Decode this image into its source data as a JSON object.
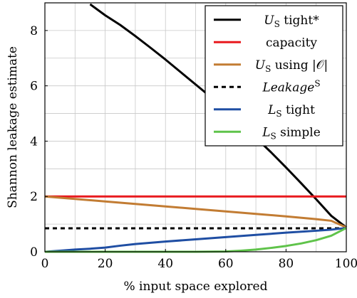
{
  "chart_data": {
    "type": "line",
    "xlabel": "% input space explored",
    "ylabel": "Shannon leakage estimate",
    "xlim": [
      0,
      100
    ],
    "ylim": [
      0,
      9
    ],
    "xticks": [
      0,
      20,
      40,
      60,
      80,
      100
    ],
    "yticks": [
      0,
      2,
      4,
      6,
      8
    ],
    "grid": true,
    "legend_position": "top-right",
    "series": [
      {
        "key": "us_tight",
        "label_main": "U",
        "label_sub": "S",
        "label_rest": " tight*",
        "italic_main": true,
        "color": "#000000",
        "dash": "solid",
        "x": [
          15,
          20,
          25,
          30,
          35,
          40,
          45,
          50,
          55,
          60,
          65,
          70,
          75,
          80,
          85,
          90,
          95,
          100
        ],
        "y": [
          8.95,
          8.55,
          8.2,
          7.8,
          7.38,
          6.95,
          6.5,
          6.05,
          5.6,
          5.12,
          4.63,
          4.12,
          3.6,
          3.05,
          2.48,
          1.9,
          1.3,
          0.88
        ]
      },
      {
        "key": "capacity",
        "label_main": "capacity",
        "label_sub": "",
        "label_rest": "",
        "italic_main": false,
        "color": "#e8191e",
        "dash": "solid",
        "x": [
          0,
          100
        ],
        "y": [
          2.0,
          2.0
        ]
      },
      {
        "key": "us_using_o",
        "label_main": "U",
        "label_sub": "S",
        "label_rest": " using |𝒪|",
        "italic_main": true,
        "color": "#c27c33",
        "dash": "solid",
        "x": [
          0,
          10,
          20,
          30,
          40,
          50,
          60,
          70,
          80,
          90,
          95,
          100
        ],
        "y": [
          2.0,
          1.91,
          1.82,
          1.73,
          1.64,
          1.55,
          1.46,
          1.37,
          1.28,
          1.18,
          1.12,
          0.88
        ]
      },
      {
        "key": "leakage_s",
        "label_main": "Leakage",
        "label_sub": "",
        "label_sup": "S",
        "label_rest": "",
        "italic_main": true,
        "color": "#000000",
        "dash": "dashed",
        "x": [
          0,
          100
        ],
        "y": [
          0.85,
          0.85
        ]
      },
      {
        "key": "ls_tight",
        "label_main": "L",
        "label_sub": "S",
        "label_rest": " tight",
        "italic_main": true,
        "color": "#1f4ea3",
        "dash": "solid",
        "x": [
          0,
          5,
          10,
          15,
          20,
          25,
          30,
          40,
          50,
          60,
          70,
          80,
          90,
          95,
          100
        ],
        "y": [
          0.0,
          0.04,
          0.08,
          0.11,
          0.15,
          0.22,
          0.28,
          0.37,
          0.45,
          0.53,
          0.61,
          0.69,
          0.76,
          0.8,
          0.86
        ]
      },
      {
        "key": "ls_simple",
        "label_main": "L",
        "label_sub": "S",
        "label_rest": " simple",
        "italic_main": true,
        "color": "#5fc34a",
        "dash": "solid",
        "x": [
          0,
          50,
          60,
          65,
          70,
          75,
          80,
          85,
          90,
          95,
          100
        ],
        "y": [
          0.0,
          0.0,
          0.01,
          0.04,
          0.08,
          0.14,
          0.21,
          0.3,
          0.42,
          0.58,
          0.86
        ]
      }
    ]
  }
}
